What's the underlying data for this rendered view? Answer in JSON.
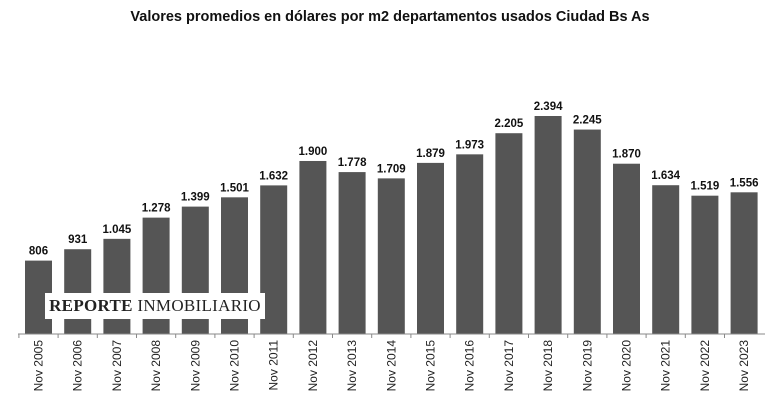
{
  "chart_data": {
    "type": "bar",
    "title": "Valores promedios en dólares por m2 departamentos usados Ciudad Bs As",
    "categories": [
      "Nov 2005",
      "Nov 2006",
      "Nov 2007",
      "Nov 2008",
      "Nov 2009",
      "Nov 2010",
      "Nov 2011",
      "Nov 2012",
      "Nov 2013",
      "Nov 2014",
      "Nov 2015",
      "Nov 2016",
      "Nov 2017",
      "Nov 2018",
      "Nov 2019",
      "Nov 2020",
      "Nov 2021",
      "Nov 2022",
      "Nov 2023"
    ],
    "values": [
      806,
      931,
      1045,
      1278,
      1399,
      1501,
      1632,
      1900,
      1778,
      1709,
      1879,
      1973,
      2205,
      2394,
      2245,
      1870,
      1634,
      1519,
      1556
    ],
    "labels": [
      "806",
      "931",
      "1.045",
      "1.278",
      "1.399",
      "1.501",
      "1.632",
      "1.900",
      "1.778",
      "1.709",
      "1.879",
      "1.973",
      "2.205",
      "2.394",
      "2.245",
      "1.870",
      "1.634",
      "1.519",
      "1.556"
    ],
    "xlabel": "",
    "ylabel": "",
    "ylim": [
      0,
      2394
    ],
    "bar_color": "#555555",
    "grid": false
  },
  "watermark": {
    "bold": "REPORTE",
    "rest": "INMOBILIARIO"
  }
}
